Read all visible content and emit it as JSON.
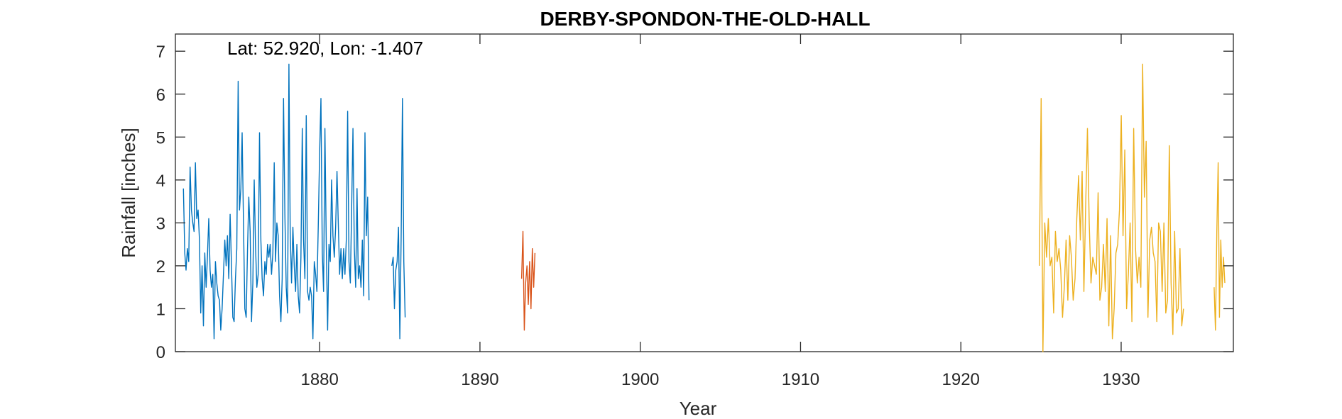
{
  "chart_data": {
    "type": "line",
    "title": "DERBY-SPONDON-THE-OLD-HALL",
    "annotation": "Lat: 52.920, Lon: -1.407",
    "xlabel": "Year",
    "ylabel": "Rainfall [inches]",
    "xlim": [
      1871.0,
      1937.0
    ],
    "ylim": [
      0,
      7.4
    ],
    "xticks": [
      1880,
      1890,
      1900,
      1910,
      1920,
      1930
    ],
    "yticks": [
      0,
      1,
      2,
      3,
      4,
      5,
      6,
      7
    ],
    "grid": false,
    "colors": [
      "#0072BD",
      "#D95319",
      "#EDB120"
    ],
    "series": [
      {
        "segments": [
          {
            "start": 1871.5,
            "step": 0.0833,
            "values": [
              3.8,
              2.3,
              1.9,
              2.4,
              2.1,
              4.3,
              3.3,
              3.0,
              2.8,
              4.4,
              3.1,
              3.3,
              2.6,
              0.9,
              2.0,
              0.6,
              2.3,
              1.5,
              2.2,
              3.1,
              1.9,
              1.5,
              1.8,
              0.3,
              2.1,
              1.6,
              1.3,
              1.2,
              0.5,
              1.0,
              1.8,
              2.6,
              2.0,
              2.7,
              1.7,
              3.2,
              2.0,
              0.8,
              0.7,
              1.7,
              2.4,
              6.3,
              3.3,
              3.8,
              5.1,
              3.0,
              1.0,
              0.8,
              2.4,
              3.6,
              2.8,
              0.7,
              1.6,
              4.0,
              2.5,
              1.5,
              1.8,
              5.1,
              2.6,
              1.7,
              1.3,
              2.1,
              1.8,
              2.5,
              2.2,
              2.5,
              1.8,
              2.3,
              4.4,
              2.1,
              3.0,
              2.7,
              1.3,
              0.7,
              1.7,
              5.9,
              3.2,
              1.5,
              0.9,
              6.7,
              2.8,
              1.6,
              2.9,
              2.0,
              1.4,
              2.5,
              1.3,
              0.9,
              2.2,
              5.2,
              2.6,
              1.7,
              5.5,
              1.4,
              1.2,
              1.5,
              1.3,
              0.3,
              2.1,
              1.8,
              1.4,
              2.9,
              4.6,
              5.9,
              2.3,
              1.4,
              5.2,
              2.5,
              0.5,
              2.5,
              2.1,
              4.0,
              2.7,
              2.2,
              2.9,
              4.2,
              3.0,
              1.8,
              2.4,
              1.7,
              2.4,
              1.8,
              2.6,
              5.6,
              2.1,
              1.6,
              3.3,
              5.2,
              2.4,
              1.5,
              3.8,
              1.7,
              2.0,
              1.5,
              2.6,
              1.3,
              5.1,
              2.7,
              3.6,
              1.2
            ]
          },
          {
            "start": 1884.5,
            "step": 0.0833,
            "values": [
              2.0,
              2.2,
              1.0,
              1.9,
              2.1,
              2.9,
              0.3,
              2.6,
              5.9,
              2.1,
              0.8
            ]
          }
        ]
      },
      {
        "segments": [
          {
            "start": 1892.6,
            "step": 0.0833,
            "values": [
              1.7,
              2.8,
              0.5,
              1.6,
              2.0,
              1.1,
              2.1,
              1.0,
              2.4,
              1.5,
              2.3
            ]
          }
        ]
      },
      {
        "segments": [
          {
            "start": 1924.9,
            "step": 0.0833,
            "values": [
              2.0,
              5.9,
              0.0,
              3.0,
              2.2,
              3.1,
              2.0,
              2.2,
              0.9,
              2.8,
              2.1,
              2.4,
              1.9,
              0.8,
              1.5,
              2.6,
              1.2,
              2.7,
              2.2,
              1.2,
              1.7,
              3.1,
              4.1,
              2.6,
              4.2,
              1.4,
              3.4,
              5.2,
              3.0,
              1.6,
              2.2,
              2.0,
              1.8,
              3.7,
              1.2,
              1.5,
              2.5,
              1.4,
              3.1,
              0.6,
              2.7,
              0.3,
              1.0,
              2.3,
              2.5,
              3.3,
              5.5,
              2.7,
              4.7,
              1.0,
              1.8,
              3.0,
              0.7,
              5.2,
              2.4,
              1.6,
              2.2,
              1.5,
              6.7,
              3.6,
              4.9,
              0.8,
              2.6,
              2.9,
              2.3,
              2.1,
              0.7,
              3.0,
              2.8,
              1.4,
              3.0,
              0.9,
              1.2,
              4.8,
              1.6,
              0.4,
              2.8,
              0.9,
              1.0,
              2.4,
              0.6,
              1.0
            ],
            "step_override": 0.111
          },
          {
            "start": 1935.8,
            "step": 0.0833,
            "values": [
              1.5,
              0.5,
              2.8,
              4.4,
              0.8,
              2.6,
              1.5,
              2.2,
              1.6
            ]
          }
        ]
      }
    ]
  }
}
